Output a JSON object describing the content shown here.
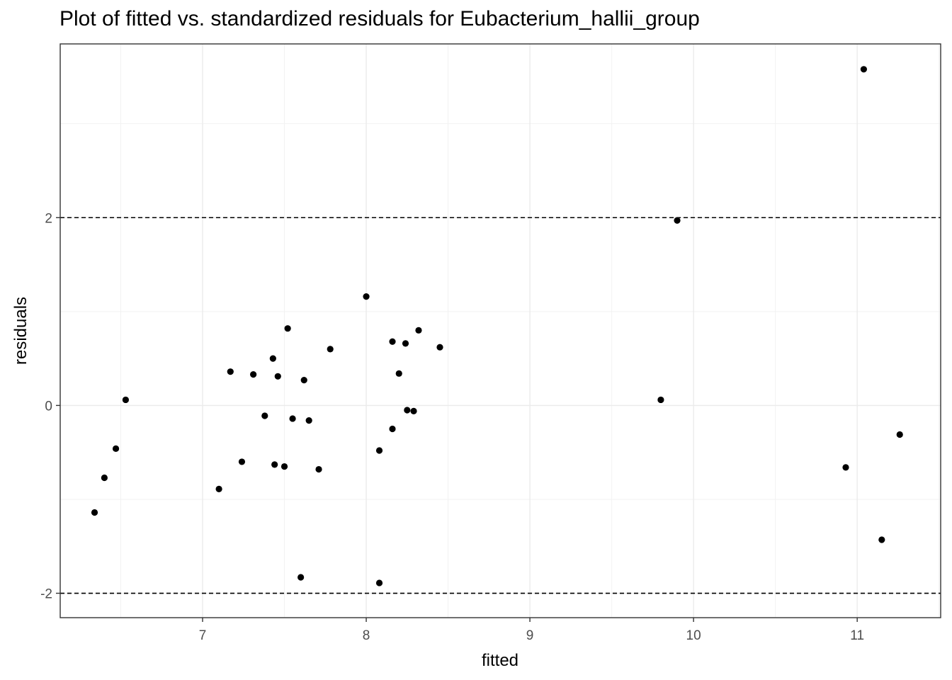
{
  "chart_data": {
    "type": "scatter",
    "title": "Plot of fitted vs. standardized residuals for Eubacterium_hallii_group",
    "xlabel": "fitted",
    "ylabel": "residuals",
    "xlim": [
      6.13,
      11.51
    ],
    "ylim": [
      -2.26,
      3.85
    ],
    "x_ticks": [
      7,
      8,
      9,
      10,
      11
    ],
    "x_tick_labels": [
      "7",
      "8",
      "9",
      "10",
      "11"
    ],
    "y_ticks": [
      -2,
      0,
      2
    ],
    "y_tick_labels": [
      "-2",
      "0",
      "2"
    ],
    "reference_lines_y": [
      -2,
      2
    ],
    "grid": true,
    "legend": "none",
    "point_color": "#000000",
    "points": [
      {
        "x": 6.34,
        "y": -1.14
      },
      {
        "x": 6.4,
        "y": -0.77
      },
      {
        "x": 6.47,
        "y": -0.46
      },
      {
        "x": 6.53,
        "y": 0.06
      },
      {
        "x": 7.1,
        "y": -0.89
      },
      {
        "x": 7.17,
        "y": 0.36
      },
      {
        "x": 7.24,
        "y": -0.6
      },
      {
        "x": 7.31,
        "y": 0.33
      },
      {
        "x": 7.38,
        "y": -0.11
      },
      {
        "x": 7.43,
        "y": 0.5
      },
      {
        "x": 7.44,
        "y": -0.63
      },
      {
        "x": 7.46,
        "y": 0.31
      },
      {
        "x": 7.5,
        "y": -0.65
      },
      {
        "x": 7.52,
        "y": 0.82
      },
      {
        "x": 7.55,
        "y": -0.14
      },
      {
        "x": 7.6,
        "y": -1.83
      },
      {
        "x": 7.62,
        "y": 0.27
      },
      {
        "x": 7.65,
        "y": -0.16
      },
      {
        "x": 7.71,
        "y": -0.68
      },
      {
        "x": 7.78,
        "y": 0.6
      },
      {
        "x": 8.0,
        "y": 1.16
      },
      {
        "x": 8.08,
        "y": -0.48
      },
      {
        "x": 8.08,
        "y": -1.89
      },
      {
        "x": 8.16,
        "y": -0.25
      },
      {
        "x": 8.16,
        "y": 0.68
      },
      {
        "x": 8.2,
        "y": 0.34
      },
      {
        "x": 8.24,
        "y": 0.66
      },
      {
        "x": 8.25,
        "y": -0.05
      },
      {
        "x": 8.29,
        "y": -0.06
      },
      {
        "x": 8.32,
        "y": 0.8
      },
      {
        "x": 8.45,
        "y": 0.62
      },
      {
        "x": 9.8,
        "y": 0.06
      },
      {
        "x": 9.9,
        "y": 1.97
      },
      {
        "x": 10.93,
        "y": -0.66
      },
      {
        "x": 11.04,
        "y": 3.58
      },
      {
        "x": 11.15,
        "y": -1.43
      },
      {
        "x": 11.26,
        "y": -0.31
      }
    ]
  }
}
